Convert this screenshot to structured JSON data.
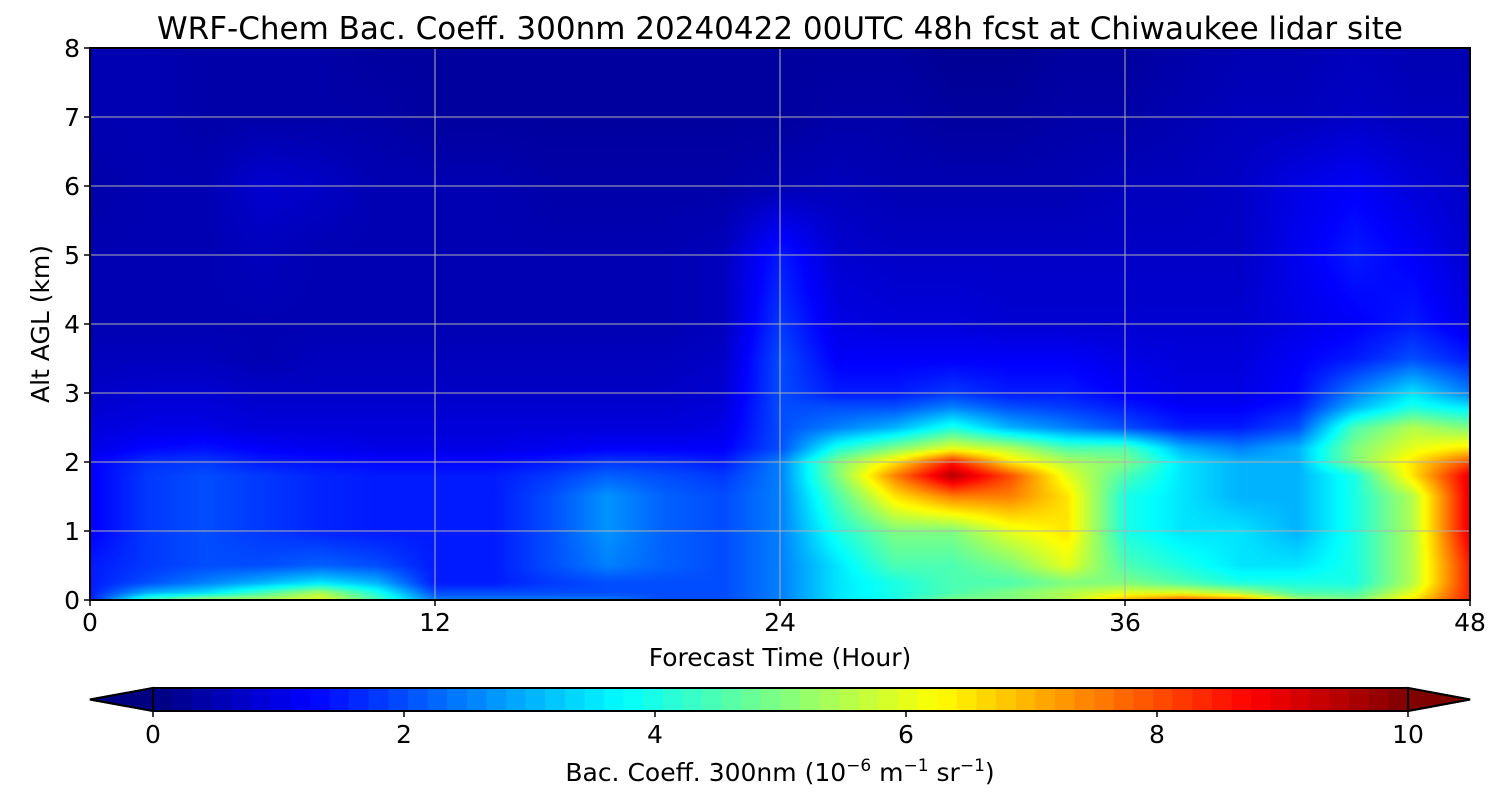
{
  "chart_data": {
    "type": "heatmap",
    "title": "WRF-Chem Bac. Coeff. 300nm  20240422 00UTC 48h fcst at Chiwaukee lidar site",
    "xlabel": "Forecast Time (Hour)",
    "ylabel": "Alt AGL (km)",
    "xlim": [
      0,
      48
    ],
    "ylim": [
      0,
      8
    ],
    "x_ticks": [
      0,
      12,
      24,
      36,
      48
    ],
    "y_ticks": [
      0,
      1,
      2,
      3,
      4,
      5,
      6,
      7,
      8
    ],
    "grid": true,
    "colormap": "jet",
    "colorbar": {
      "orientation": "horizontal",
      "position": "bottom",
      "extend": "both",
      "range": [
        0,
        10
      ],
      "ticks": [
        0,
        2,
        4,
        6,
        8,
        10
      ],
      "label_main": "Bac. Coeff. 300nm  (10",
      "label_exp1": "−6",
      "label_mid": " m",
      "label_exp2": "−1",
      "label_mid2": " sr",
      "label_exp3": "−1",
      "label_end": ")"
    },
    "x_hours": [
      0,
      2,
      4,
      6,
      8,
      10,
      12,
      14,
      16,
      18,
      20,
      22,
      24,
      26,
      28,
      30,
      32,
      34,
      36,
      38,
      40,
      42,
      44,
      46,
      48
    ],
    "altitudes_km": [
      0.0,
      0.1,
      0.25,
      0.5,
      1.0,
      1.5,
      1.8,
      2.0,
      2.2,
      2.5,
      2.8,
      3.0,
      3.5,
      4.0,
      5.0,
      6.0,
      7.0,
      8.0
    ],
    "values": [
      [
        1.5,
        4.5,
        5.5,
        5.5,
        6.0,
        4.5,
        2.5,
        2.5,
        2.5,
        2.5,
        2.0,
        2.0,
        2.5,
        3.5,
        4.0,
        5.0,
        5.0,
        5.5,
        7.0,
        8.0,
        7.5,
        5.5,
        5.0,
        6.5,
        8.5
      ],
      [
        1.5,
        3.0,
        3.5,
        4.5,
        5.5,
        4.0,
        2.0,
        2.0,
        2.0,
        2.0,
        2.0,
        2.0,
        2.5,
        3.5,
        4.0,
        4.5,
        5.0,
        5.5,
        6.0,
        6.0,
        5.5,
        4.5,
        4.5,
        6.0,
        8.5
      ],
      [
        1.5,
        2.0,
        2.5,
        3.0,
        3.5,
        3.0,
        1.5,
        1.5,
        1.8,
        2.0,
        2.0,
        2.0,
        2.5,
        3.5,
        4.0,
        4.5,
        4.5,
        5.0,
        5.0,
        4.5,
        4.0,
        4.0,
        4.0,
        5.5,
        8.5
      ],
      [
        1.5,
        1.8,
        2.0,
        2.0,
        2.2,
        2.0,
        1.5,
        1.5,
        2.0,
        2.5,
        2.2,
        2.0,
        2.5,
        3.5,
        4.5,
        4.5,
        5.0,
        6.0,
        4.5,
        4.0,
        3.5,
        3.5,
        4.0,
        5.5,
        8.5
      ],
      [
        1.2,
        1.8,
        2.0,
        1.8,
        1.6,
        1.5,
        1.5,
        1.5,
        2.0,
        2.7,
        2.2,
        2.0,
        2.5,
        4.0,
        5.0,
        5.0,
        6.0,
        6.5,
        4.0,
        3.5,
        3.5,
        3.0,
        4.0,
        5.5,
        9.0
      ],
      [
        1.2,
        1.8,
        2.0,
        1.8,
        1.6,
        1.5,
        1.5,
        1.5,
        2.0,
        2.7,
        2.2,
        2.0,
        2.5,
        4.5,
        6.5,
        7.5,
        7.5,
        6.5,
        4.0,
        3.5,
        3.0,
        3.0,
        4.0,
        5.5,
        9.0
      ],
      [
        1.2,
        1.8,
        2.0,
        1.8,
        1.6,
        1.5,
        1.5,
        1.5,
        1.8,
        2.2,
        2.0,
        1.8,
        2.5,
        5.0,
        7.5,
        9.5,
        8.0,
        6.0,
        4.5,
        3.5,
        3.0,
        3.0,
        4.0,
        6.5,
        9.0
      ],
      [
        1.2,
        1.7,
        1.8,
        1.5,
        1.4,
        1.3,
        1.3,
        1.3,
        1.5,
        1.8,
        1.7,
        1.5,
        2.5,
        5.0,
        6.5,
        8.5,
        6.5,
        5.5,
        5.0,
        3.5,
        3.0,
        3.0,
        5.0,
        6.5,
        8.0
      ],
      [
        1.0,
        1.3,
        1.4,
        1.2,
        1.1,
        1.0,
        1.0,
        1.0,
        1.1,
        1.2,
        1.2,
        1.2,
        2.0,
        4.0,
        5.0,
        6.0,
        5.5,
        4.5,
        4.5,
        3.0,
        2.5,
        3.0,
        5.0,
        6.0,
        6.5
      ],
      [
        0.9,
        1.0,
        1.0,
        0.9,
        0.9,
        0.9,
        0.9,
        0.9,
        0.9,
        0.9,
        0.9,
        1.0,
        2.0,
        2.5,
        3.0,
        4.0,
        3.0,
        2.5,
        2.0,
        1.5,
        1.5,
        2.0,
        4.5,
        5.5,
        5.0
      ],
      [
        0.8,
        0.9,
        0.9,
        0.8,
        0.8,
        0.8,
        0.8,
        0.8,
        0.8,
        0.8,
        0.8,
        0.9,
        2.0,
        2.0,
        2.0,
        2.5,
        2.0,
        1.8,
        1.5,
        1.2,
        1.2,
        1.5,
        3.0,
        4.0,
        3.5
      ],
      [
        0.7,
        0.8,
        0.8,
        0.7,
        0.7,
        0.7,
        0.7,
        0.7,
        0.7,
        0.7,
        0.7,
        0.8,
        2.0,
        1.5,
        1.5,
        1.8,
        1.5,
        1.5,
        1.2,
        1.0,
        1.0,
        1.3,
        2.5,
        3.5,
        2.5
      ],
      [
        0.6,
        0.6,
        0.6,
        0.5,
        0.6,
        0.6,
        0.6,
        0.6,
        0.6,
        0.6,
        0.6,
        0.7,
        2.0,
        1.2,
        1.2,
        1.2,
        1.2,
        1.2,
        1.0,
        0.9,
        0.9,
        1.2,
        1.5,
        2.0,
        1.5
      ],
      [
        0.5,
        0.5,
        0.5,
        0.5,
        0.5,
        0.5,
        0.5,
        0.5,
        0.5,
        0.5,
        0.5,
        0.6,
        1.8,
        1.0,
        0.9,
        0.9,
        0.8,
        0.8,
        0.8,
        0.8,
        0.8,
        1.0,
        1.2,
        1.5,
        1.0
      ],
      [
        0.5,
        0.5,
        0.5,
        0.6,
        0.5,
        0.5,
        0.5,
        0.5,
        0.5,
        0.5,
        0.5,
        0.6,
        1.5,
        0.8,
        0.7,
        0.7,
        0.7,
        0.7,
        0.7,
        0.7,
        0.7,
        1.1,
        1.5,
        1.2,
        0.8
      ],
      [
        0.4,
        0.5,
        0.5,
        0.8,
        0.7,
        0.5,
        0.5,
        0.5,
        0.4,
        0.4,
        0.4,
        0.4,
        0.5,
        0.6,
        0.5,
        0.5,
        0.5,
        0.5,
        0.6,
        0.6,
        0.7,
        1.0,
        1.2,
        0.9,
        0.7
      ],
      [
        0.5,
        0.5,
        0.4,
        0.4,
        0.4,
        0.4,
        0.3,
        0.3,
        0.3,
        0.3,
        0.3,
        0.3,
        0.3,
        0.4,
        0.4,
        0.3,
        0.3,
        0.4,
        0.4,
        0.5,
        0.6,
        0.6,
        0.7,
        0.6,
        0.6
      ],
      [
        0.5,
        0.5,
        0.4,
        0.4,
        0.4,
        0.3,
        0.3,
        0.3,
        0.3,
        0.3,
        0.3,
        0.3,
        0.3,
        0.3,
        0.3,
        0.2,
        0.2,
        0.3,
        0.3,
        0.4,
        0.5,
        0.5,
        0.6,
        0.5,
        0.5
      ]
    ]
  }
}
